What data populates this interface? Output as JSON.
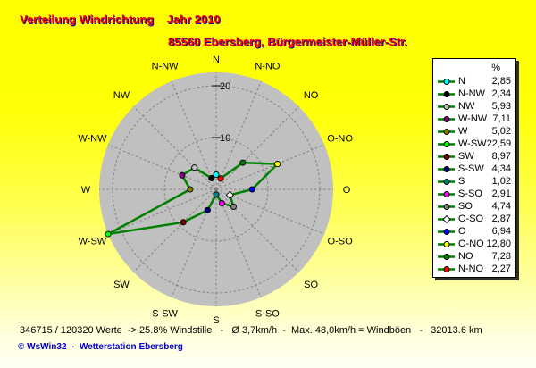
{
  "title": {
    "line1": "Verteilung Windrichtung    Jahr 2010",
    "line2": "85560 Ebersberg, Bürgermeister-Müller-Str."
  },
  "legend": {
    "header": "%",
    "entries": [
      {
        "label": "N",
        "value": "2,85",
        "color": "#00FFFF",
        "shape": "circle"
      },
      {
        "label": "N-NW",
        "value": "2,34",
        "color": "#000000",
        "shape": "circle"
      },
      {
        "label": "NW",
        "value": "5,93",
        "color": "#C0C0C0",
        "shape": "circle"
      },
      {
        "label": "W-NW",
        "value": "7,11",
        "color": "#800080",
        "shape": "circle"
      },
      {
        "label": "W",
        "value": "5,02",
        "color": "#808000",
        "shape": "circle"
      },
      {
        "label": "W-SW",
        "value": "22,59",
        "color": "#00FF00",
        "shape": "circle"
      },
      {
        "label": "SW",
        "value": "8,97",
        "color": "#800000",
        "shape": "circle"
      },
      {
        "label": "S-SW",
        "value": "4,34",
        "color": "#000080",
        "shape": "circle"
      },
      {
        "label": "S",
        "value": "1,02",
        "color": "#008080",
        "shape": "circle"
      },
      {
        "label": "S-SO",
        "value": "2,91",
        "color": "#FF00FF",
        "shape": "circle"
      },
      {
        "label": "SO",
        "value": "4,74",
        "color": "#808080",
        "shape": "circle"
      },
      {
        "label": "O-SO",
        "value": "2,87",
        "color": "#FFFFFF",
        "shape": "diamond"
      },
      {
        "label": "O",
        "value": "6,94",
        "color": "#0000FF",
        "shape": "circle"
      },
      {
        "label": "O-NO",
        "value": "12,80",
        "color": "#FFFF00",
        "shape": "circle"
      },
      {
        "label": "NO",
        "value": "7,28",
        "color": "#008000",
        "shape": "circle"
      },
      {
        "label": "N-NO",
        "value": "2,27",
        "color": "#FF0000",
        "shape": "circle"
      }
    ]
  },
  "chart_data": {
    "type": "radar",
    "title": "Verteilung Windrichtung Jahr 2010",
    "units": "%",
    "rmax": 22.59,
    "rticks": [
      10,
      20
    ],
    "categories": [
      "N",
      "N-NO",
      "NO",
      "O-NO",
      "O",
      "O-SO",
      "SO",
      "S-SO",
      "S",
      "S-SW",
      "SW",
      "W-SW",
      "W",
      "W-NW",
      "NW",
      "N-NW"
    ],
    "values": [
      2.85,
      2.27,
      7.28,
      12.8,
      6.94,
      2.87,
      4.74,
      2.91,
      1.02,
      4.34,
      8.97,
      22.59,
      5.02,
      7.11,
      5.93,
      2.34
    ],
    "marker_colors": [
      "#00FFFF",
      "#FF0000",
      "#008000",
      "#FFFF00",
      "#0000FF",
      "#FFFFFF",
      "#808080",
      "#FF00FF",
      "#008080",
      "#000080",
      "#800000",
      "#00FF00",
      "#808000",
      "#800080",
      "#C0C0C0",
      "#000000"
    ],
    "marker_shapes": [
      "circle",
      "circle",
      "circle",
      "circle",
      "circle",
      "diamond",
      "circle",
      "circle",
      "circle",
      "circle",
      "circle",
      "circle",
      "circle",
      "circle",
      "circle",
      "circle"
    ],
    "line_color": "#008000",
    "disc_color": "#C0C0C0",
    "grid_color": "#808080",
    "label_color": "#000000",
    "legend_position": "right",
    "grid": "dashed"
  },
  "footer": {
    "stats": "346715 / 120320 Werte  -> 25.8% Windstille   -   Ø 3,7km/h  -  Max. 48,0km/h = Windböen   -   32013.6 km",
    "copyright": "© WsWin32  -  Wetterstation Ebersberg"
  }
}
